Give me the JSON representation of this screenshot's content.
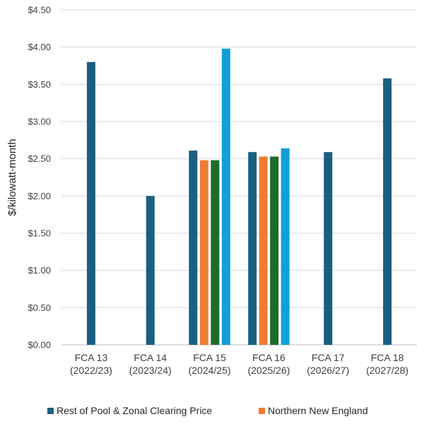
{
  "chart_data": {
    "type": "bar",
    "title": "",
    "xlabel": "",
    "ylabel": "$/kilowatt-month",
    "ylim": [
      0,
      4.5
    ],
    "ytick_step": 0.5,
    "ytick_labels": [
      "$0.00",
      "$0.50",
      "$1.00",
      "$1.50",
      "$2.00",
      "$2.50",
      "$3.00",
      "$3.50",
      "$4.00",
      "$4.50"
    ],
    "grid": true,
    "legend_position": "bottom",
    "categories": [
      [
        "FCA 13",
        "(2022/23)"
      ],
      [
        "FCA 14",
        "(2023/24)"
      ],
      [
        "FCA 15",
        "(2024/25)"
      ],
      [
        "FCA 16",
        "(2025/26)"
      ],
      [
        "FCA 17",
        "(2026/27)"
      ],
      [
        "FCA 18",
        "(2027/28)"
      ]
    ],
    "series": [
      {
        "name": "Rest of Pool & Zonal Clearing Price",
        "color": "#1b5f80",
        "values": [
          3.8,
          2.0,
          2.61,
          2.59,
          2.59,
          3.58
        ],
        "show_in_legend": true
      },
      {
        "name": "Northern New England",
        "color": "#ed7d31",
        "values": [
          null,
          null,
          2.48,
          2.53,
          null,
          null
        ],
        "show_in_legend": true
      },
      {
        "name": "",
        "color": "#1e6b2b",
        "values": [
          null,
          null,
          2.48,
          2.53,
          null,
          null
        ],
        "show_in_legend": false
      },
      {
        "name": "",
        "color": "#149ed8",
        "values": [
          null,
          null,
          3.98,
          2.64,
          null,
          null
        ],
        "show_in_legend": false
      }
    ]
  }
}
